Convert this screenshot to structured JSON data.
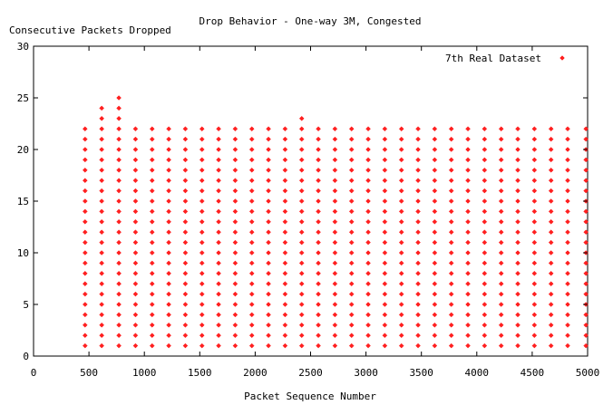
{
  "chart_data": {
    "type": "scatter",
    "title": "Drop Behavior - One-way 3M, Congested",
    "xlabel": "Packet Sequence Number",
    "ylabel": "Consecutive Packets Dropped",
    "xlim": [
      0,
      5000
    ],
    "ylim": [
      0,
      30
    ],
    "x_ticks": [
      "0",
      "500",
      "1000",
      "1500",
      "2000",
      "2500",
      "3000",
      "3500",
      "4000",
      "4500",
      "5000"
    ],
    "y_ticks": [
      "0",
      "5",
      "10",
      "15",
      "20",
      "25",
      "30"
    ],
    "grid": false,
    "legend_position": "top-right",
    "marker": "diamond",
    "series": [
      {
        "name": "7th Real Dataset",
        "color": "#ff2020",
        "columns": [
          {
            "x": 465,
            "ymax": 22
          },
          {
            "x": 615,
            "ymax": 24
          },
          {
            "x": 770,
            "ymax": 25
          },
          {
            "x": 920,
            "ymax": 22
          },
          {
            "x": 1070,
            "ymax": 22
          },
          {
            "x": 1220,
            "ymax": 22
          },
          {
            "x": 1370,
            "ymax": 22
          },
          {
            "x": 1520,
            "ymax": 22
          },
          {
            "x": 1670,
            "ymax": 22
          },
          {
            "x": 1820,
            "ymax": 22
          },
          {
            "x": 1970,
            "ymax": 22
          },
          {
            "x": 2120,
            "ymax": 22
          },
          {
            "x": 2270,
            "ymax": 22
          },
          {
            "x": 2420,
            "ymax": 23
          },
          {
            "x": 2570,
            "ymax": 22
          },
          {
            "x": 2720,
            "ymax": 22
          },
          {
            "x": 2870,
            "ymax": 22
          },
          {
            "x": 3020,
            "ymax": 22
          },
          {
            "x": 3170,
            "ymax": 22
          },
          {
            "x": 3320,
            "ymax": 22
          },
          {
            "x": 3470,
            "ymax": 22
          },
          {
            "x": 3620,
            "ymax": 22
          },
          {
            "x": 3770,
            "ymax": 22
          },
          {
            "x": 3920,
            "ymax": 22
          },
          {
            "x": 4070,
            "ymax": 22
          },
          {
            "x": 4220,
            "ymax": 22
          },
          {
            "x": 4370,
            "ymax": 22
          },
          {
            "x": 4520,
            "ymax": 22
          },
          {
            "x": 4670,
            "ymax": 22
          },
          {
            "x": 4820,
            "ymax": 22
          },
          {
            "x": 4985,
            "ymax": 22
          }
        ]
      }
    ]
  }
}
